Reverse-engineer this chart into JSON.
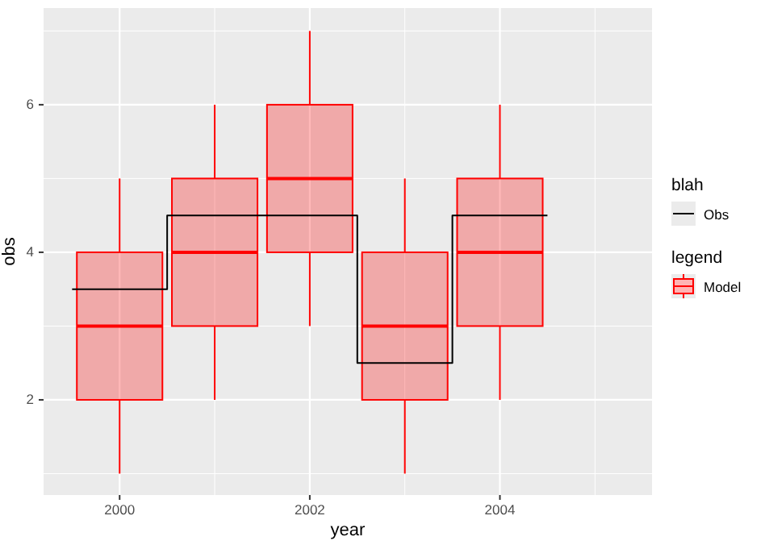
{
  "chart_data": {
    "type": "box",
    "xlabel": "year",
    "ylabel": "obs",
    "legend_title": "blah",
    "annotations": [
      "legend"
    ],
    "xlim": [
      1999.2,
      2005.6
    ],
    "xticks": [
      2000,
      2002,
      2004
    ],
    "ylim": [
      0.71,
      7.31
    ],
    "yticks": [
      2,
      4,
      6
    ],
    "grid": true,
    "legend": "right",
    "series": [
      {
        "name": "Model",
        "type": "box",
        "color": "#ff0000",
        "x": [
          2000,
          2001,
          2002,
          2003,
          2004
        ],
        "boxes": [
          {
            "low": 1,
            "q1": 2,
            "median": 3,
            "q3": 4,
            "high": 5
          },
          {
            "low": 2,
            "q1": 3,
            "median": 4,
            "q3": 5,
            "high": 6
          },
          {
            "low": 3,
            "q1": 4,
            "median": 5,
            "q3": 6,
            "high": 7
          },
          {
            "low": 1,
            "q1": 2,
            "median": 3,
            "q3": 4,
            "high": 5
          },
          {
            "low": 2,
            "q1": 3,
            "median": 4,
            "q3": 5,
            "high": 6
          }
        ]
      },
      {
        "name": "Obs",
        "type": "step",
        "color": "#000000",
        "x": [
          1999.5,
          2000.5,
          2001.5,
          2002.5,
          2003.5,
          2004.5
        ],
        "values": [
          3.5,
          4.5,
          4.5,
          2.5,
          4.5,
          4.5
        ]
      }
    ]
  }
}
